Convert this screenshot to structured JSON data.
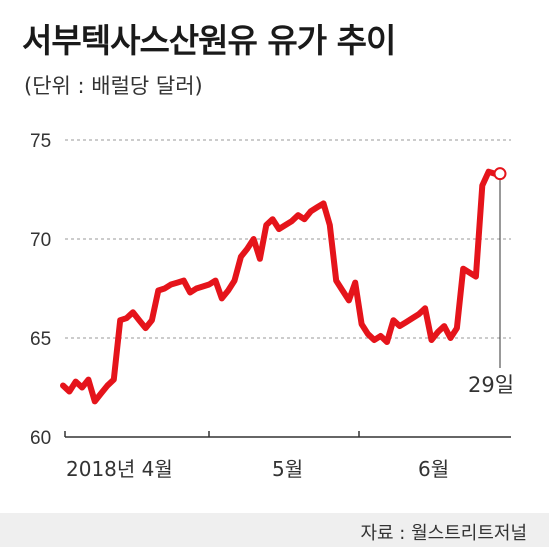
{
  "title": "서부텍사스산원유 유가 추이",
  "unit_label": "(단위 : 배럴당 달러)",
  "source": "자료 : 월스트리트저널",
  "colors": {
    "line": "#e5141b",
    "grid": "#999999",
    "axis": "#333333",
    "footer_bg": "#efefef"
  },
  "chart_data": {
    "type": "line",
    "title": "서부텍사스산원유 유가 추이",
    "ylabel": "",
    "xlabel": "",
    "ylim": [
      60,
      75
    ],
    "y_ticks": [
      60,
      65,
      70,
      75
    ],
    "grid": "horizontal dashed",
    "x_tick_labels": [
      "2018년 4월",
      "5월",
      "6월"
    ],
    "annotation": {
      "label": "29일",
      "value": 73.3
    },
    "series": [
      {
        "values": [
          62.6,
          62.3,
          62.8,
          62.5,
          62.9,
          61.8,
          62.2,
          62.6,
          62.9,
          65.9,
          66.0,
          66.3,
          65.9,
          65.5,
          65.9,
          67.4,
          67.5,
          67.7,
          67.8,
          67.9,
          67.3,
          67.5,
          67.6,
          67.7,
          67.9,
          67.0,
          67.4,
          67.9,
          69.1,
          69.5,
          70.0,
          69.0,
          70.7,
          71.0,
          70.5,
          70.7,
          70.9,
          71.2,
          71.0,
          71.4,
          71.6,
          71.8,
          70.7,
          67.9,
          67.4,
          66.9,
          67.8,
          65.7,
          65.2,
          64.9,
          65.1,
          64.8,
          65.9,
          65.6,
          65.8,
          66.0,
          66.2,
          66.5,
          64.9,
          65.3,
          65.6,
          65.0,
          65.5,
          68.5,
          68.3,
          68.1,
          72.7,
          73.4,
          73.3
        ]
      }
    ]
  }
}
